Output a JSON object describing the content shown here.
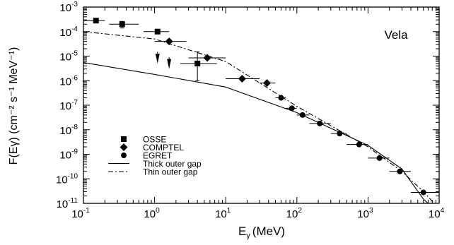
{
  "chart_data": {
    "type": "scatter",
    "title": "",
    "annotation": "Vela",
    "x_axis": {
      "label_main": "E",
      "label_sub": "γ",
      "label_unit": "(MeV)",
      "scale": "log",
      "range": [
        0.1,
        10000
      ],
      "ticks": [
        {
          "base": "10",
          "exp": "-1",
          "value": 0.1
        },
        {
          "base": "10",
          "exp": "0",
          "value": 1
        },
        {
          "base": "10",
          "exp": "1",
          "value": 10
        },
        {
          "base": "10",
          "exp": "2",
          "value": 100
        },
        {
          "base": "10",
          "exp": "3",
          "value": 1000
        },
        {
          "base": "10",
          "exp": "4",
          "value": 10000
        }
      ]
    },
    "y_axis": {
      "label": "F(Eγ) (cm⁻² s⁻¹ MeV⁻¹)",
      "scale": "log",
      "range": [
        1e-11,
        0.001
      ],
      "ticks": [
        {
          "base": "10",
          "exp": "-11",
          "value": 1e-11
        },
        {
          "base": "10",
          "exp": "-10",
          "value": 1e-10
        },
        {
          "base": "10",
          "exp": "-9",
          "value": 1e-09
        },
        {
          "base": "10",
          "exp": "-8",
          "value": 1e-08
        },
        {
          "base": "10",
          "exp": "-7",
          "value": 1e-07
        },
        {
          "base": "10",
          "exp": "-6",
          "value": 1e-06
        },
        {
          "base": "10",
          "exp": "-5",
          "value": 1e-05
        },
        {
          "base": "10",
          "exp": "-4",
          "value": 0.0001
        },
        {
          "base": "10",
          "exp": "-3",
          "value": 0.001
        }
      ]
    },
    "legend": {
      "placement": "lower-left",
      "entries": [
        "OSSE",
        "COMPTEL",
        "EGRET",
        "Thick outer gap",
        "Thin outer gap"
      ]
    },
    "series": [
      {
        "name": "OSSE",
        "marker": "square",
        "points": [
          {
            "x": 0.15,
            "y": 0.00028,
            "xlo": 0.1,
            "xhi": 0.2
          },
          {
            "x": 0.35,
            "y": 0.0002,
            "xlo": 0.23,
            "xhi": 0.6,
            "ylo": 0.00014,
            "yhi": 0.00026
          },
          {
            "x": 1.1,
            "y": 0.0001,
            "xlo": 0.7,
            "xhi": 1.6
          },
          {
            "x": 4.0,
            "y": 5e-06,
            "xlo": 2.3,
            "xhi": 7.5,
            "ylo": 1e-06,
            "yhi": 1.5e-05
          }
        ]
      },
      {
        "name": "COMPTEL",
        "marker": "diamond",
        "points": [
          {
            "x": 1.6,
            "y": 4e-05,
            "xlo": 1.0,
            "xhi": 2.8
          },
          {
            "x": 5.5,
            "y": 8.5e-06,
            "xlo": 3.0,
            "xhi": 10.0
          },
          {
            "x": 17.0,
            "y": 1.2e-06,
            "xlo": 10.0,
            "xhi": 30.0
          },
          {
            "x": 38.0,
            "y": 8e-07,
            "xlo": 30.0,
            "xhi": 50.0
          }
        ]
      },
      {
        "name": "EGRET",
        "marker": "circle",
        "points": [
          {
            "x": 60.0,
            "y": 2e-07,
            "xlo": 50.0,
            "xhi": 70.0
          },
          {
            "x": 85.0,
            "y": 7.5e-08,
            "xlo": 70.0,
            "xhi": 100.0
          },
          {
            "x": 120.0,
            "y": 4e-08,
            "xlo": 100.0,
            "xhi": 150.0
          },
          {
            "x": 210.0,
            "y": 1.8e-08,
            "xlo": 150.0,
            "xhi": 300.0
          },
          {
            "x": 400.0,
            "y": 7e-09,
            "xlo": 300.0,
            "xhi": 500.0
          },
          {
            "x": 750.0,
            "y": 2.5e-09,
            "xlo": 500.0,
            "xhi": 1000.0
          },
          {
            "x": 1450.0,
            "y": 7e-10,
            "xlo": 1000.0,
            "xhi": 2000.0
          },
          {
            "x": 2800.0,
            "y": 2e-10,
            "xlo": 2000.0,
            "xhi": 4000.0
          },
          {
            "x": 6000.0,
            "y": 2.8e-11,
            "xlo": 4000.0,
            "xhi": 10000.0
          }
        ]
      },
      {
        "name": "Thick outer gap",
        "line": "solid",
        "points": [
          {
            "x": 0.1,
            "y": 5.5e-06
          },
          {
            "x": 1.0,
            "y": 1.8e-06
          },
          {
            "x": 10.0,
            "y": 5.5e-07
          },
          {
            "x": 100.0,
            "y": 5e-08
          },
          {
            "x": 1000.0,
            "y": 2.3e-09
          },
          {
            "x": 3000.0,
            "y": 2.5e-10
          },
          {
            "x": 6000.0,
            "y": 1.5e-11
          },
          {
            "x": 7000.0,
            "y": 1e-11
          }
        ]
      },
      {
        "name": "Thin outer gap",
        "line": "dash-dot",
        "points": [
          {
            "x": 0.1,
            "y": 0.0001
          },
          {
            "x": 1.0,
            "y": 5e-05
          },
          {
            "x": 10.0,
            "y": 6e-06
          },
          {
            "x": 100.0,
            "y": 9e-08
          },
          {
            "x": 1000.0,
            "y": 2e-09
          },
          {
            "x": 3000.0,
            "y": 2e-10
          },
          {
            "x": 6000.0,
            "y": 3e-11
          },
          {
            "x": 8500.0,
            "y": 1e-11
          }
        ]
      }
    ],
    "upper_limit_arrows": [
      {
        "x": 1.1,
        "y": 1.5e-05,
        "y_to": 5e-06
      },
      {
        "x": 1.6,
        "y": 9e-06,
        "y_to": 3e-06
      }
    ]
  }
}
